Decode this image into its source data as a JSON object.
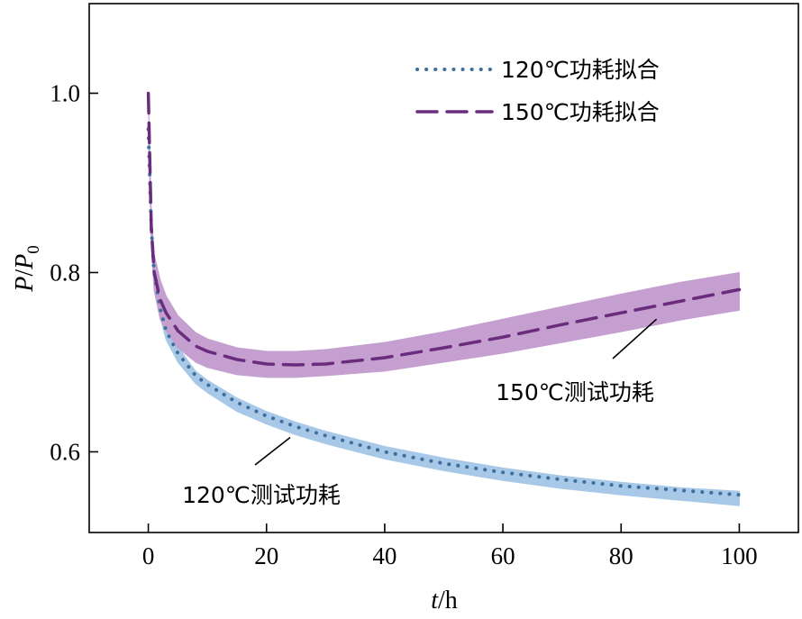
{
  "chart_data": {
    "type": "line",
    "xlabel": {
      "italic": "t",
      "rest": "/h"
    },
    "ylabel": {
      "p": "P",
      "slash": "/",
      "p0": "P",
      "sub": "0"
    },
    "xlim": [
      -10,
      110
    ],
    "ylim": [
      0.51,
      1.1
    ],
    "xticks": [
      0,
      20,
      40,
      60,
      80,
      100
    ],
    "xtick_labels": [
      "0",
      "20",
      "40",
      "60",
      "80",
      "100"
    ],
    "yticks": [
      0.6,
      0.8,
      1.0
    ],
    "ytick_labels": [
      "0.6",
      "0.8",
      "1.0"
    ],
    "grid": false,
    "legend_position": "top-right",
    "colors": {
      "fit120": "#3e6f9c",
      "fit150": "#6a2c7d",
      "band120": "#a8c8e8",
      "band150": "#c49fd0"
    },
    "series": [
      {
        "name": "120℃功耗拟合",
        "style": "dotted",
        "color": "#3e6f9c",
        "x": [
          0,
          0.5,
          1,
          2,
          3,
          5,
          8,
          10,
          15,
          20,
          25,
          30,
          40,
          50,
          60,
          70,
          80,
          90,
          100
        ],
        "y": [
          0.96,
          0.85,
          0.8,
          0.76,
          0.735,
          0.71,
          0.685,
          0.675,
          0.655,
          0.64,
          0.628,
          0.618,
          0.6,
          0.587,
          0.577,
          0.569,
          0.562,
          0.557,
          0.552
        ]
      },
      {
        "name": "150℃功耗拟合",
        "style": "dashed",
        "color": "#6a2c7d",
        "x": [
          0,
          0.5,
          1,
          2,
          3,
          5,
          8,
          10,
          15,
          20,
          25,
          30,
          40,
          50,
          60,
          70,
          80,
          90,
          100
        ],
        "y": [
          1.0,
          0.85,
          0.8,
          0.77,
          0.755,
          0.735,
          0.718,
          0.712,
          0.703,
          0.698,
          0.697,
          0.698,
          0.705,
          0.716,
          0.728,
          0.742,
          0.755,
          0.768,
          0.781
        ]
      }
    ],
    "bands": [
      {
        "name": "120℃测试功耗",
        "color": "#a8c8e8",
        "x": [
          0,
          0.5,
          1,
          2,
          3,
          5,
          8,
          10,
          15,
          20,
          25,
          30,
          40,
          50,
          60,
          70,
          80,
          90,
          100
        ],
        "upper": [
          0.95,
          0.86,
          0.81,
          0.77,
          0.745,
          0.717,
          0.69,
          0.68,
          0.66,
          0.645,
          0.633,
          0.623,
          0.606,
          0.593,
          0.582,
          0.573,
          0.566,
          0.56,
          0.556
        ],
        "lower": [
          0.95,
          0.84,
          0.79,
          0.75,
          0.725,
          0.7,
          0.676,
          0.666,
          0.645,
          0.631,
          0.619,
          0.609,
          0.592,
          0.579,
          0.568,
          0.559,
          0.552,
          0.546,
          0.54
        ]
      },
      {
        "name": "150℃测试功耗",
        "color": "#c49fd0",
        "x": [
          0,
          0.5,
          1,
          2,
          3,
          5,
          8,
          10,
          15,
          20,
          25,
          30,
          40,
          50,
          60,
          70,
          80,
          90,
          100
        ],
        "upper": [
          1.0,
          0.87,
          0.82,
          0.792,
          0.774,
          0.752,
          0.733,
          0.726,
          0.716,
          0.712,
          0.712,
          0.714,
          0.722,
          0.734,
          0.748,
          0.762,
          0.776,
          0.789,
          0.8
        ],
        "lower": [
          1.0,
          0.83,
          0.78,
          0.748,
          0.735,
          0.716,
          0.7,
          0.694,
          0.686,
          0.683,
          0.683,
          0.685,
          0.69,
          0.7,
          0.71,
          0.722,
          0.734,
          0.747,
          0.758
        ]
      }
    ],
    "annotations": [
      {
        "text": "150℃测试功耗",
        "points_to_x": 86,
        "points_to_y": 0.748
      },
      {
        "text": "120℃测试功耗",
        "points_to_x": 24,
        "points_to_y": 0.616
      }
    ]
  }
}
